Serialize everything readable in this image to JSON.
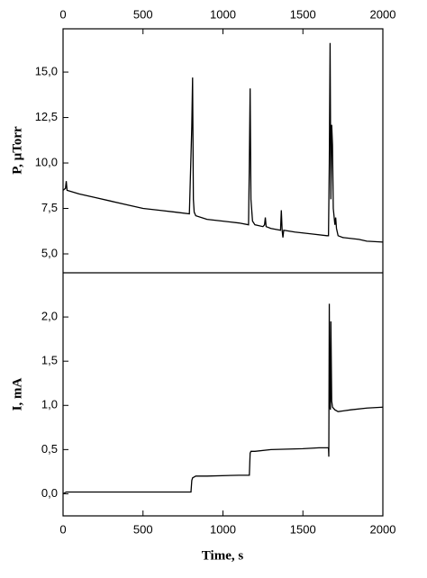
{
  "chart_data": [
    {
      "type": "line",
      "ylabel": "P, µTorr",
      "color": "#000000",
      "x": [
        0,
        15,
        20,
        25,
        100,
        200,
        300,
        400,
        500,
        600,
        700,
        790,
        805,
        810,
        815,
        820,
        830,
        900,
        1000,
        1100,
        1160,
        1165,
        1170,
        1175,
        1185,
        1200,
        1250,
        1260,
        1265,
        1270,
        1300,
        1360,
        1365,
        1370,
        1375,
        1380,
        1450,
        1550,
        1650,
        1660,
        1665,
        1670,
        1675,
        1680,
        1685,
        1690,
        1700,
        1705,
        1710,
        1720,
        1750,
        1850,
        1900,
        2000
      ],
      "values": [
        8.5,
        8.6,
        9.0,
        8.5,
        8.3,
        8.1,
        7.9,
        7.7,
        7.5,
        7.4,
        7.3,
        7.2,
        12.0,
        14.7,
        8.0,
        7.3,
        7.1,
        6.9,
        6.8,
        6.7,
        6.6,
        10.0,
        14.1,
        8.0,
        6.8,
        6.6,
        6.5,
        6.6,
        7.0,
        6.5,
        6.4,
        6.3,
        7.4,
        6.3,
        5.9,
        6.3,
        6.2,
        6.1,
        6.0,
        6.0,
        10.0,
        16.6,
        8.0,
        12.1,
        11.0,
        7.5,
        6.6,
        7.0,
        6.4,
        6.0,
        5.9,
        5.8,
        5.7,
        5.65
      ],
      "xlim": [
        0,
        2000
      ],
      "xticks": [
        0,
        500,
        1000,
        1500,
        2000
      ],
      "xaxis_position": "top",
      "ylim": [
        3.96,
        17.38
      ],
      "yticks": [
        {
          "value": 5,
          "label": "5,0"
        },
        {
          "value": 7.5,
          "label": "7,5"
        },
        {
          "value": 10,
          "label": "10,0"
        },
        {
          "value": 12.5,
          "label": "12,5"
        },
        {
          "value": 15,
          "label": "15,0"
        }
      ]
    },
    {
      "type": "line",
      "ylabel": "I, mA",
      "xlabel": "Time, s",
      "color": "#000000",
      "x": [
        0,
        20,
        100,
        400,
        800,
        805,
        810,
        830,
        900,
        1100,
        1165,
        1170,
        1175,
        1200,
        1300,
        1500,
        1600,
        1660,
        1662,
        1665,
        1668,
        1672,
        1675,
        1680,
        1685,
        1700,
        1720,
        1800,
        1900,
        2000
      ],
      "values": [
        0.0,
        0.02,
        0.02,
        0.02,
        0.02,
        0.15,
        0.18,
        0.2,
        0.2,
        0.21,
        0.21,
        0.46,
        0.48,
        0.48,
        0.5,
        0.51,
        0.52,
        0.52,
        0.42,
        2.15,
        1.0,
        0.95,
        1.95,
        1.05,
        0.98,
        0.95,
        0.93,
        0.95,
        0.97,
        0.98
      ],
      "xlim": [
        0,
        2000
      ],
      "xticks": [
        0,
        500,
        1000,
        1500,
        2000
      ],
      "xaxis_position": "bottom",
      "ylim": [
        -0.25,
        2.5
      ],
      "yticks": [
        {
          "value": 0,
          "label": "0,0"
        },
        {
          "value": 0.5,
          "label": "0,5"
        },
        {
          "value": 1,
          "label": "1,0"
        },
        {
          "value": 1.5,
          "label": "1,5"
        },
        {
          "value": 2,
          "label": "2,0"
        }
      ]
    }
  ]
}
